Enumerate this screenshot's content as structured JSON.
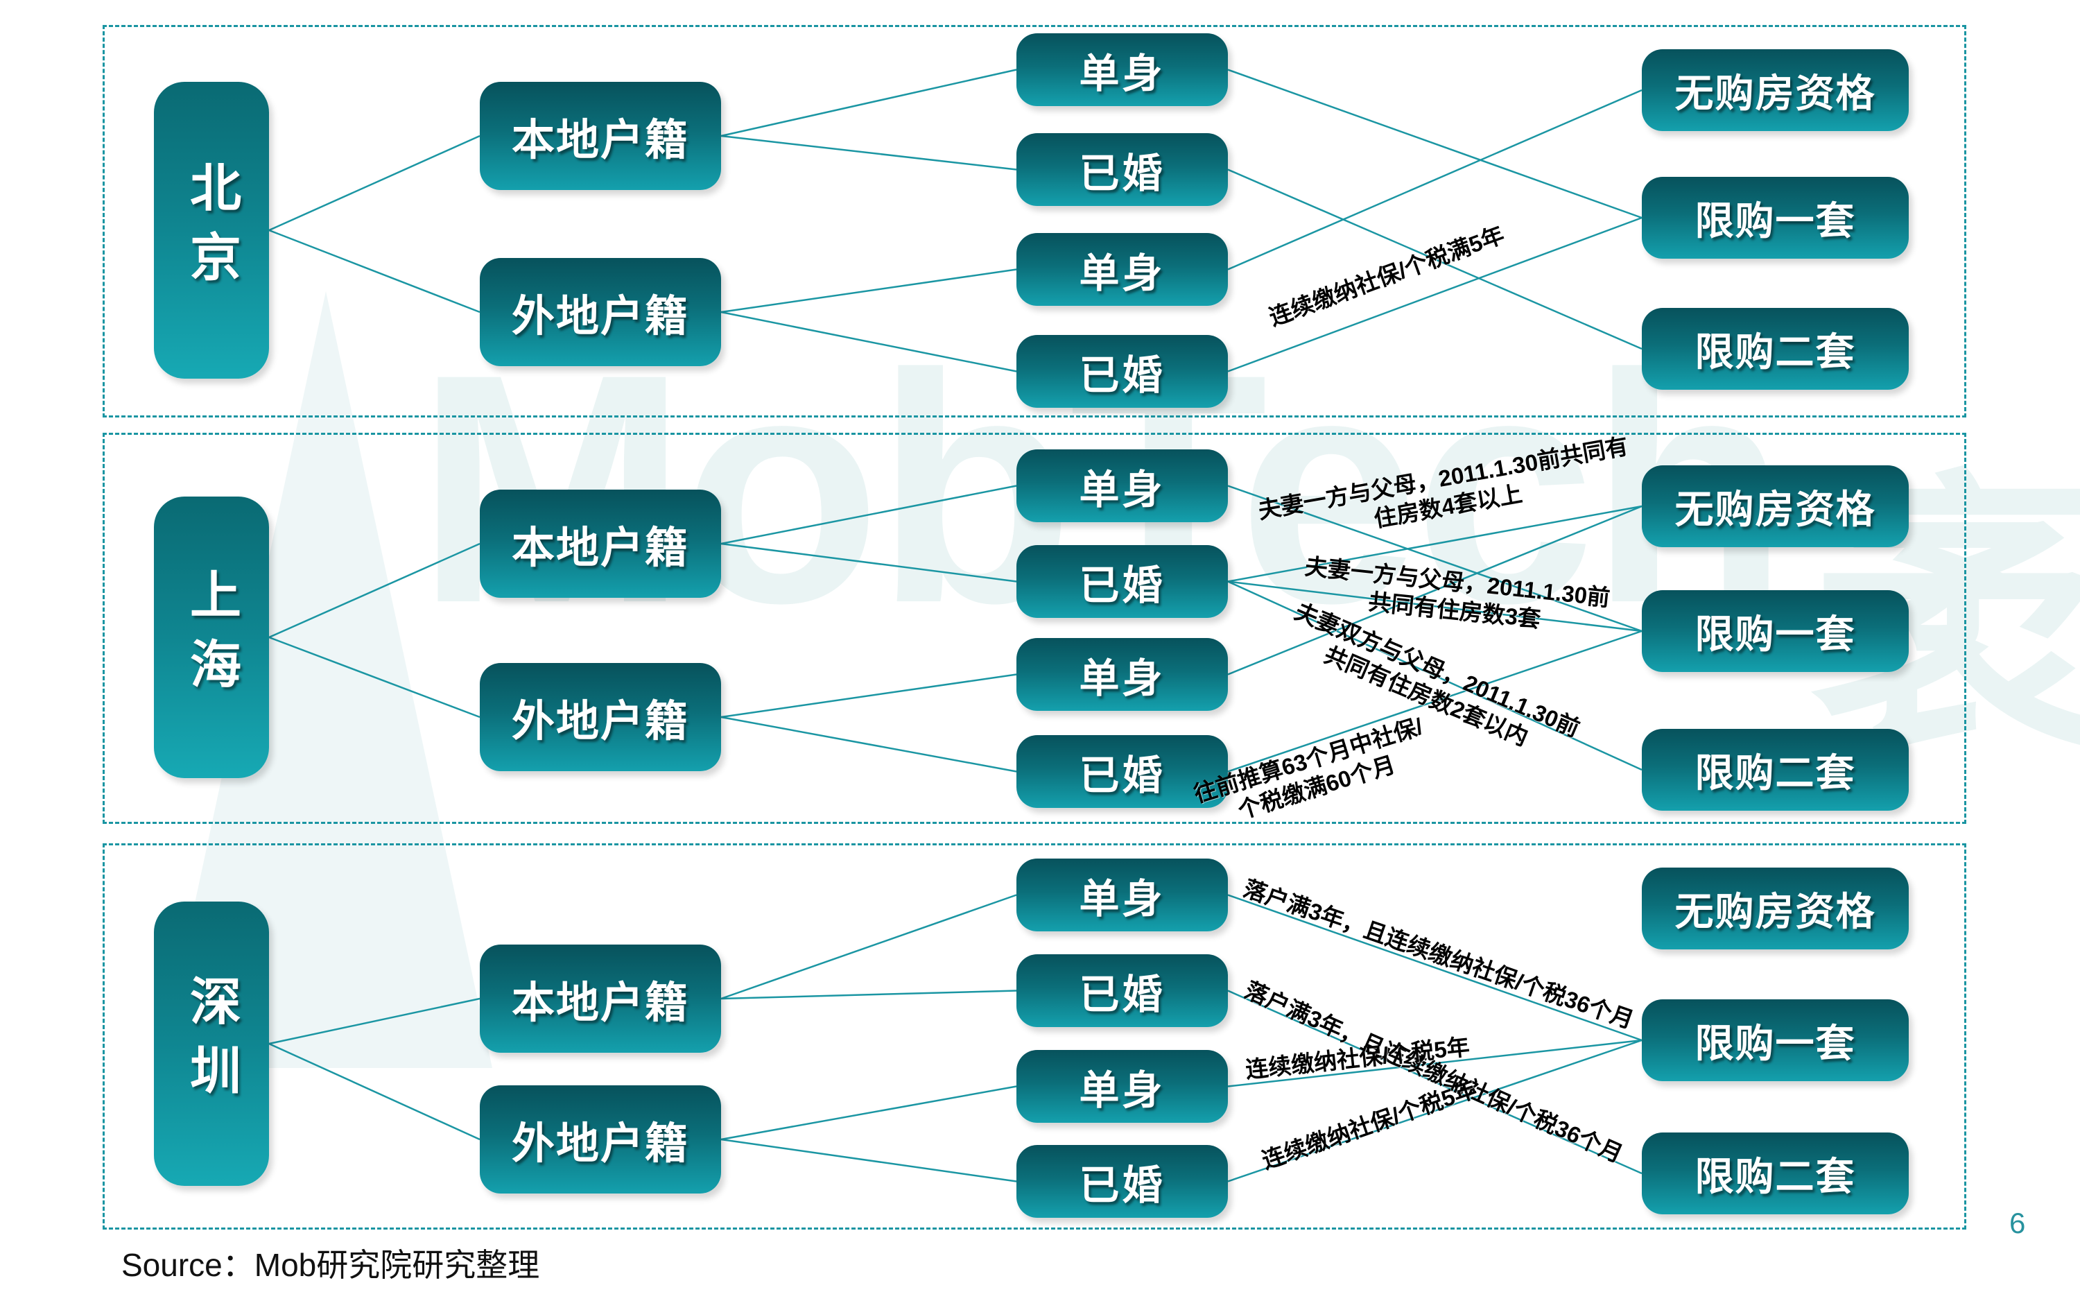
{
  "slide": {
    "source_caption": "Source：Mob研究院研究整理",
    "page_number": "6"
  },
  "watermark": {
    "latin": "MobTech",
    "cn": "袤博"
  },
  "colors": {
    "box_gradient_top": "#07525c",
    "box_gradient_bottom": "#14a0ad",
    "panel_border": "#1a95a2",
    "connector_line": "#1b96a3",
    "note_text": "#000000",
    "page_number": "#27929e"
  },
  "panels": [
    {
      "id": "beijing",
      "city": "北京",
      "nodes": {
        "local": "本地户籍",
        "nonlocal": "外地户籍",
        "local_single": "单身",
        "local_married": "已婚",
        "nonlocal_single": "单身",
        "nonlocal_married": "已婚",
        "none": "无购房资格",
        "one": "限购一套",
        "two": "限购二套"
      },
      "edges": [
        {
          "from": "city",
          "to": "local"
        },
        {
          "from": "city",
          "to": "nonlocal"
        },
        {
          "from": "local",
          "to": "local_single"
        },
        {
          "from": "local",
          "to": "local_married"
        },
        {
          "from": "nonlocal",
          "to": "nonlocal_single"
        },
        {
          "from": "nonlocal",
          "to": "nonlocal_married"
        },
        {
          "from": "local_single",
          "to": "one"
        },
        {
          "from": "local_married",
          "to": "two"
        },
        {
          "from": "nonlocal_single",
          "to": "none"
        },
        {
          "from": "nonlocal_married",
          "to": "one",
          "label": "连续缴纳社保/个税满5年"
        }
      ]
    },
    {
      "id": "shanghai",
      "city": "上海",
      "nodes": {
        "local": "本地户籍",
        "nonlocal": "外地户籍",
        "local_single": "单身",
        "local_married": "已婚",
        "nonlocal_single": "单身",
        "nonlocal_married": "已婚",
        "none": "无购房资格",
        "one": "限购一套",
        "two": "限购二套"
      },
      "edges": [
        {
          "from": "city",
          "to": "local"
        },
        {
          "from": "city",
          "to": "nonlocal"
        },
        {
          "from": "local",
          "to": "local_single"
        },
        {
          "from": "local",
          "to": "local_married"
        },
        {
          "from": "nonlocal",
          "to": "nonlocal_single"
        },
        {
          "from": "nonlocal",
          "to": "nonlocal_married"
        },
        {
          "from": "local_single",
          "to": "one"
        },
        {
          "from": "local_married",
          "to": "none",
          "label": "夫妻一方与父母，2011.1.30前共同有\n住房数4套以上"
        },
        {
          "from": "local_married",
          "to": "one",
          "label": "夫妻一方与父母，2011.1.30前\n共同有住房数3套"
        },
        {
          "from": "local_married",
          "to": "two",
          "label": "夫妻双方与父母，2011.1.30前\n共同有住房数2套以内"
        },
        {
          "from": "nonlocal_single",
          "to": "none"
        },
        {
          "from": "nonlocal_married",
          "to": "one",
          "label": "往前推算63个月中社保/\n个税缴满60个月"
        }
      ]
    },
    {
      "id": "shenzhen",
      "city": "深圳",
      "nodes": {
        "local": "本地户籍",
        "nonlocal": "外地户籍",
        "local_single": "单身",
        "local_married": "已婚",
        "nonlocal_single": "单身",
        "nonlocal_married": "已婚",
        "none": "无购房资格",
        "one": "限购一套",
        "two": "限购二套"
      },
      "edges": [
        {
          "from": "city",
          "to": "local"
        },
        {
          "from": "city",
          "to": "nonlocal"
        },
        {
          "from": "local",
          "to": "local_single"
        },
        {
          "from": "local",
          "to": "local_married"
        },
        {
          "from": "nonlocal",
          "to": "nonlocal_single"
        },
        {
          "from": "nonlocal",
          "to": "nonlocal_married"
        },
        {
          "from": "local_single",
          "to": "one",
          "label": "落户满3年，且连续缴纳社保/个税36个月"
        },
        {
          "from": "local_married",
          "to": "two",
          "label": "落户满3年，且连续缴纳社保/个税36个月"
        },
        {
          "from": "nonlocal_single",
          "to": "one",
          "label": "连续缴纳社保/个税5年"
        },
        {
          "from": "nonlocal_married",
          "to": "one",
          "label": "连续缴纳社保/个税5年"
        }
      ]
    }
  ]
}
